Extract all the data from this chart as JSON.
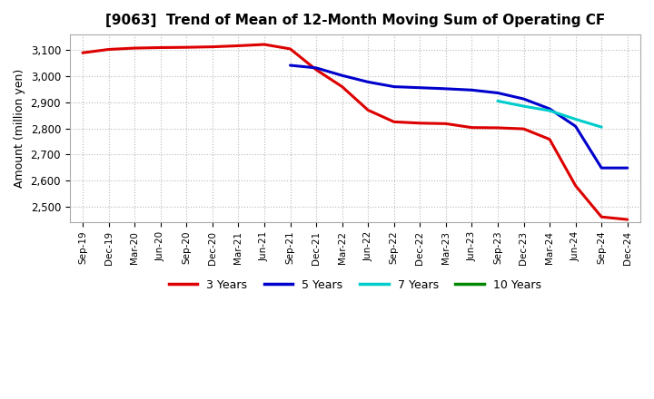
{
  "title": "[9063]  Trend of Mean of 12-Month Moving Sum of Operating CF",
  "ylabel": "Amount (million yen)",
  "ylim": [
    2440,
    3160
  ],
  "yticks": [
    2500,
    2600,
    2700,
    2800,
    2900,
    3000,
    3100
  ],
  "background_color": "#ffffff",
  "plot_bg_color": "#ffffff",
  "grid_color": "#bbbbbb",
  "x_labels": [
    "Sep-19",
    "Dec-19",
    "Mar-20",
    "Jun-20",
    "Sep-20",
    "Dec-20",
    "Mar-21",
    "Jun-21",
    "Sep-21",
    "Dec-21",
    "Mar-22",
    "Jun-22",
    "Sep-22",
    "Dec-22",
    "Mar-23",
    "Jun-23",
    "Sep-23",
    "Dec-23",
    "Mar-24",
    "Jun-24",
    "Sep-24",
    "Dec-24"
  ],
  "series": {
    "3 Years": {
      "color": "#dd0000",
      "data_x": [
        0,
        1,
        2,
        3,
        4,
        5,
        6,
        7,
        8,
        9,
        10,
        11,
        12,
        13,
        14,
        15,
        16,
        17,
        18,
        19,
        20,
        21
      ],
      "data_y": [
        3090,
        3103,
        3108,
        3110,
        3111,
        3113,
        3117,
        3122,
        3105,
        3025,
        2960,
        2870,
        2825,
        2820,
        2818,
        2803,
        2802,
        2798,
        2758,
        2580,
        2460,
        2450
      ]
    },
    "5 Years": {
      "color": "#0000cc",
      "data_x": [
        8,
        9,
        10,
        11,
        12,
        13,
        14,
        15,
        16,
        17,
        18,
        19,
        20,
        21
      ],
      "data_y": [
        3042,
        3032,
        3003,
        2978,
        2960,
        2956,
        2952,
        2947,
        2936,
        2913,
        2875,
        2808,
        2648,
        2648
      ]
    },
    "7 Years": {
      "color": "#00cccc",
      "data_x": [
        16,
        17,
        18,
        19,
        20
      ],
      "data_y": [
        2905,
        2885,
        2868,
        2835,
        2805
      ]
    },
    "10 Years": {
      "color": "#008800",
      "data_x": [],
      "data_y": []
    }
  },
  "legend": {
    "labels": [
      "3 Years",
      "5 Years",
      "7 Years",
      "10 Years"
    ],
    "colors": [
      "#dd0000",
      "#0000cc",
      "#00cccc",
      "#008800"
    ]
  }
}
